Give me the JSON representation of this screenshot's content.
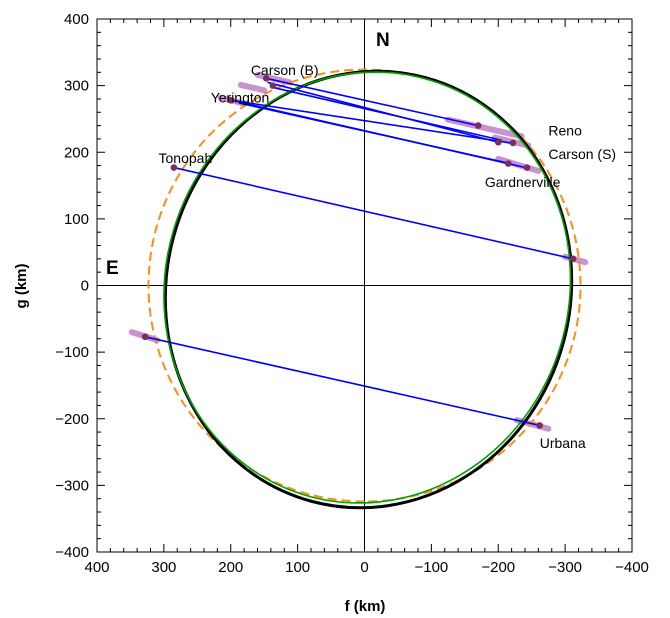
{
  "chart_data": {
    "type": "scatter",
    "title": "",
    "xlabel": "f (km)",
    "ylabel": "g (km)",
    "xlim": [
      400,
      -400
    ],
    "ylim": [
      -400,
      400
    ],
    "x_ticks": [
      "400",
      "300",
      "200",
      "100",
      "0",
      "−100",
      "−200",
      "−300",
      "−400"
    ],
    "y_ticks": [
      "400",
      "300",
      "200",
      "100",
      "0",
      "−100",
      "−200",
      "−300",
      "−400"
    ],
    "direction_labels": {
      "north": "N",
      "east": "E"
    },
    "colors": {
      "chords": "#0000ff",
      "ellipse_black": "#000000",
      "ellipse_green": "#00a000",
      "circle_dashed": "#ff8c1a",
      "error_bars": "#c080c8",
      "points": "#7a2f5a"
    },
    "ellipses": [
      {
        "name": "",
        "style": "solid-black",
        "center": [
          -6,
          -6
        ],
        "semi_major": 328,
        "semi_minor": 302,
        "angle_deg": 75
      },
      {
        "name": "",
        "style": "solid-green",
        "center": [
          -4,
          -3
        ],
        "semi_major": 324,
        "semi_minor": 302,
        "angle_deg": 73
      },
      {
        "name": "",
        "style": "dashed-orange",
        "center": [
          0,
          0
        ],
        "semi_major": 323,
        "semi_minor": 323,
        "angle_deg": 0
      }
    ],
    "chords": [
      {
        "site": "Carson (B)",
        "x1": 147,
        "y1": 311,
        "x2": -170,
        "y2": 240
      },
      {
        "site": "Carson (B)",
        "x1": 145,
        "y1": 305,
        "x2": -200,
        "y2": 215
      },
      {
        "site": "Yerington",
        "x1": 200,
        "y1": 278,
        "x2": -225,
        "y2": 213
      },
      {
        "site": "Reno",
        "x1": 140,
        "y1": 298,
        "x2": -205,
        "y2": 218
      },
      {
        "site": "Gardnerville",
        "x1": 188,
        "y1": 274,
        "x2": -218,
        "y2": 183
      },
      {
        "site": "Carson (S)",
        "x1": 190,
        "y1": 276,
        "x2": -245,
        "y2": 176
      },
      {
        "site": "Tonopah",
        "x1": 285,
        "y1": 177,
        "x2": -312,
        "y2": 40
      },
      {
        "site": "Urbana",
        "x1": 328,
        "y1": -77,
        "x2": -262,
        "y2": -210
      }
    ],
    "points": [
      {
        "x": 147,
        "y": 311
      },
      {
        "x": 200,
        "y": 278
      },
      {
        "x": 137,
        "y": 300
      },
      {
        "x": -170,
        "y": 240
      },
      {
        "x": -200,
        "y": 215
      },
      {
        "x": -222,
        "y": 214
      },
      {
        "x": -215,
        "y": 183
      },
      {
        "x": -243,
        "y": 177
      },
      {
        "x": 285,
        "y": 177
      },
      {
        "x": -312,
        "y": 40
      },
      {
        "x": 328,
        "y": -77
      },
      {
        "x": -262,
        "y": -210
      }
    ],
    "error_bars": [
      {
        "x1": 160,
        "y1": 316,
        "x2": 112,
        "y2": 305
      },
      {
        "x1": 185,
        "y1": 301,
        "x2": 150,
        "y2": 293
      },
      {
        "x1": 215,
        "y1": 282,
        "x2": 180,
        "y2": 273
      },
      {
        "x1": -125,
        "y1": 249,
        "x2": -235,
        "y2": 224
      },
      {
        "x1": -195,
        "y1": 222,
        "x2": -245,
        "y2": 210
      },
      {
        "x1": -200,
        "y1": 190,
        "x2": -260,
        "y2": 172
      },
      {
        "x1": -300,
        "y1": 43,
        "x2": -330,
        "y2": 35
      },
      {
        "x1": 348,
        "y1": -70,
        "x2": 310,
        "y2": -82
      },
      {
        "x1": -228,
        "y1": -202,
        "x2": -275,
        "y2": -215
      }
    ],
    "site_labels": [
      {
        "text": "Carson (B)",
        "x": 170,
        "y": 316
      },
      {
        "text": "Yerington",
        "x": 230,
        "y": 275
      },
      {
        "text": "Reno",
        "x": -275,
        "y": 225
      },
      {
        "text": "Carson (S)",
        "x": -275,
        "y": 190
      },
      {
        "text": "Tonopah",
        "x": 308,
        "y": 184
      },
      {
        "text": "Gardnerville",
        "x": -180,
        "y": 148
      },
      {
        "text": "Urbana",
        "x": -262,
        "y": -244
      }
    ]
  }
}
